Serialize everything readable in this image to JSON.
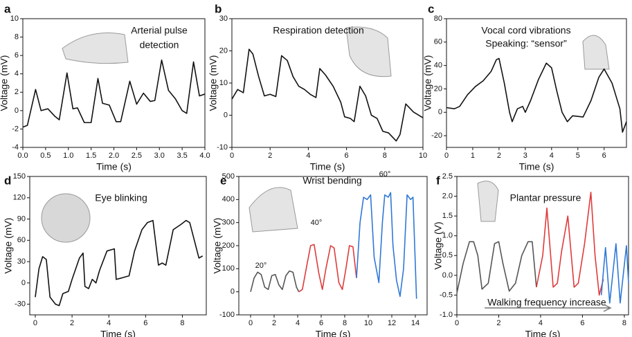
{
  "chart_data": [
    {
      "type": "line",
      "label": "a",
      "annotation": [
        "Arterial pulse",
        "detection"
      ],
      "xlabel": "Time (s)",
      "ylabel": "Voltage (mV)",
      "xlim": [
        0,
        4
      ],
      "xticks": [
        {
          "value": 0,
          "label": "0.0"
        },
        0.5,
        {
          "value": 1,
          "label": "1.0"
        },
        1.5,
        {
          "value": 2,
          "label": "2.0"
        },
        2.5,
        {
          "value": 3,
          "label": "3.0"
        },
        3.5,
        {
          "value": 4,
          "label": "4.0"
        }
      ],
      "ylim": [
        -4,
        10
      ],
      "yticks": [
        -4,
        -2,
        0,
        2,
        4,
        6,
        8,
        10
      ],
      "color": "#111111",
      "x": [
        0,
        0.1,
        0.28,
        0.4,
        0.55,
        0.7,
        0.8,
        0.97,
        1.1,
        1.2,
        1.35,
        1.5,
        1.65,
        1.75,
        1.9,
        2.05,
        2.15,
        2.35,
        2.5,
        2.65,
        2.8,
        2.9,
        3.05,
        3.2,
        3.35,
        3.5,
        3.6,
        3.75,
        3.88,
        4.0
      ],
      "values": [
        -1.8,
        -1.6,
        2.3,
        0,
        0.2,
        -0.6,
        -1,
        4.1,
        0.2,
        0.3,
        -1.3,
        -1.3,
        3.5,
        0.8,
        0.6,
        -1.2,
        -1.2,
        3.2,
        0.7,
        1.9,
        1,
        1.1,
        5.5,
        2.2,
        1.3,
        0,
        -0.3,
        5.3,
        1.6,
        1.8
      ]
    },
    {
      "type": "line",
      "label": "b",
      "annotation": [
        "Respiration detection"
      ],
      "xlabel": "Time (s)",
      "ylabel": "Voltage (mV)",
      "xlim": [
        0,
        10
      ],
      "xticks": [
        0,
        2,
        4,
        6,
        8,
        10
      ],
      "ylim": [
        -10,
        30
      ],
      "yticks": [
        -10,
        0,
        10,
        20,
        30
      ],
      "color": "#111111",
      "x": [
        0,
        0.3,
        0.6,
        0.9,
        1.1,
        1.4,
        1.7,
        2,
        2.3,
        2.6,
        2.9,
        3.2,
        3.5,
        3.8,
        4.1,
        4.4,
        4.6,
        4.9,
        5.3,
        5.7,
        5.9,
        6.2,
        6.4,
        6.7,
        7,
        7.3,
        7.6,
        7.9,
        8.2,
        8.6,
        8.8,
        9.1,
        9.5,
        10
      ],
      "values": [
        5,
        8,
        7,
        20.5,
        19,
        12,
        6,
        6.5,
        5.8,
        18.5,
        17,
        12,
        9,
        8,
        6.5,
        5.5,
        14.5,
        12.5,
        9,
        4,
        -0.5,
        -1,
        -2,
        9,
        6,
        0,
        -1,
        -5,
        -5.5,
        -8,
        -6,
        3.5,
        1,
        -0.8
      ]
    },
    {
      "type": "line",
      "label": "c",
      "annotation": [
        "Vocal cord vibrations",
        "Speaking: “sensor”"
      ],
      "xlabel": "Time (s)",
      "ylabel": "Voltage (mV)",
      "xlim": [
        0,
        6.85
      ],
      "xticks": [
        0,
        1,
        2,
        3,
        4,
        5,
        6
      ],
      "ylim": [
        -30,
        80
      ],
      "yticks": [
        -20,
        0,
        20,
        40,
        60,
        80
      ],
      "color": "#111111",
      "x": [
        0,
        0.3,
        0.5,
        0.8,
        1.1,
        1.4,
        1.7,
        1.9,
        2,
        2.2,
        2.4,
        2.5,
        2.7,
        2.9,
        3.0,
        3.2,
        3.5,
        3.8,
        4,
        4.2,
        4.4,
        4.6,
        4.8,
        5.2,
        5.5,
        5.8,
        6.0,
        6.3,
        6.6,
        6.7,
        6.85
      ],
      "values": [
        4,
        3,
        5,
        15,
        22,
        27,
        35,
        45,
        46,
        25,
        0,
        -8,
        3,
        5,
        0,
        10,
        28,
        42,
        38,
        18,
        0,
        -8,
        -3,
        -4,
        10,
        30,
        37,
        25,
        3,
        -17,
        -8
      ]
    },
    {
      "type": "line",
      "label": "d",
      "annotation": [
        "Eye blinking"
      ],
      "xlabel": "Time (s)",
      "ylabel": "Voltage (mV)",
      "xlim": [
        -0.3,
        9.3
      ],
      "xticks": [
        0,
        2,
        4,
        6,
        8
      ],
      "ylim": [
        -45,
        150
      ],
      "yticks": [
        -30,
        0,
        30,
        60,
        90,
        120,
        150
      ],
      "color": "#111111",
      "x": [
        0,
        0.2,
        0.4,
        0.6,
        0.8,
        1.1,
        1.3,
        1.5,
        1.8,
        2,
        2.4,
        2.6,
        2.7,
        2.9,
        3.1,
        3.3,
        3.5,
        3.9,
        4.3,
        4.4,
        4.7,
        5.1,
        5.4,
        5.8,
        6.1,
        6.4,
        6.7,
        6.9,
        7.1,
        7.5,
        7.9,
        8.2,
        8.4,
        8.9,
        9.1
      ],
      "values": [
        -20,
        20,
        37,
        33,
        -20,
        -30,
        -32,
        -15,
        -12,
        5,
        35,
        42,
        -5,
        -8,
        5,
        0,
        18,
        45,
        48,
        5,
        7,
        10,
        45,
        75,
        85,
        88,
        25,
        28,
        25,
        75,
        82,
        88,
        85,
        35,
        38
      ]
    },
    {
      "type": "line",
      "label": "e",
      "annotation": [
        "Wrist bending"
      ],
      "xlabel": "Time (s)",
      "ylabel": "Voltage (mV)",
      "xlim": [
        -1,
        15
      ],
      "xticks": [
        0,
        2,
        4,
        6,
        8,
        10,
        12,
        14
      ],
      "ylim": [
        -100,
        500
      ],
      "yticks": [
        -100,
        0,
        100,
        200,
        300,
        400,
        500
      ],
      "series": [
        {
          "name": "20°",
          "color": "#555555",
          "x": [
            0,
            0.3,
            0.6,
            0.9,
            1.2,
            1.5,
            1.8,
            2.1,
            2.4,
            2.7,
            3.0,
            3.3,
            3.6,
            3.9,
            4.1
          ],
          "values": [
            0,
            60,
            85,
            75,
            20,
            10,
            70,
            75,
            30,
            10,
            70,
            90,
            85,
            20,
            0
          ]
        },
        {
          "name": "40°",
          "color": "#e03a3a",
          "x": [
            4.1,
            4.4,
            4.8,
            5.1,
            5.4,
            5.8,
            6.1,
            6.4,
            6.8,
            7.1,
            7.5,
            7.8,
            8.1,
            8.4,
            8.7,
            9
          ],
          "values": [
            0,
            10,
            120,
            200,
            205,
            80,
            10,
            100,
            200,
            190,
            40,
            10,
            100,
            200,
            195,
            60
          ]
        },
        {
          "name": "60°",
          "color": "#2f78d6",
          "x": [
            9,
            9.3,
            9.6,
            9.9,
            10.2,
            10.5,
            10.9,
            11.2,
            11.4,
            11.7,
            11.9,
            12.1,
            12.4,
            12.7,
            13,
            13.3,
            13.6,
            13.8,
            14.1
          ],
          "values": [
            60,
            300,
            410,
            400,
            420,
            150,
            40,
            300,
            420,
            410,
            430,
            200,
            50,
            -20,
            100,
            420,
            400,
            410,
            -30
          ]
        }
      ]
    },
    {
      "type": "line",
      "label": "f",
      "annotation": [
        "Plantar pressure",
        "Walking frequency increase"
      ],
      "xlabel": "Time (s)",
      "ylabel": "Voltage (V)",
      "xlim": [
        0,
        8.2
      ],
      "xticks": [
        0,
        2,
        4,
        6,
        8
      ],
      "ylim": [
        -1,
        2.5
      ],
      "yticks": [
        {
          "value": -1,
          "label": "-1.0"
        },
        -0.5,
        {
          "value": 0,
          "label": "0.0"
        },
        0.5,
        {
          "value": 1,
          "label": "1.0"
        },
        1.5,
        {
          "value": 2,
          "label": "2.0"
        },
        2.5
      ],
      "series": [
        {
          "color": "#555555",
          "x": [
            0,
            0.3,
            0.6,
            0.8,
            1.0,
            1.2,
            1.5,
            1.8,
            2.0,
            2.2,
            2.5,
            2.8,
            3.1,
            3.4,
            3.6,
            3.8
          ],
          "values": [
            -0.45,
            0.3,
            0.85,
            0.85,
            0.5,
            -0.35,
            -0.2,
            0.8,
            0.85,
            0.3,
            -0.4,
            -0.2,
            0.5,
            0.85,
            0.85,
            -0.3
          ]
        },
        {
          "color": "#e03a3a",
          "x": [
            3.8,
            4.1,
            4.3,
            4.6,
            4.8,
            5.0,
            5.3,
            5.6,
            5.8,
            6.1,
            6.4,
            6.6,
            6.8,
            7.0
          ],
          "values": [
            -0.3,
            0.5,
            1.7,
            -0.3,
            -0.2,
            0.6,
            1.5,
            -0.3,
            -0.2,
            0.8,
            2.1,
            0.5,
            -0.5,
            -0.1
          ]
        },
        {
          "color": "#2f78d6",
          "x": [
            6.9,
            7.1,
            7.3,
            7.6,
            7.8,
            8.1,
            8.2
          ],
          "values": [
            -0.5,
            0.7,
            -0.7,
            0.8,
            -0.7,
            0.75,
            -0.2
          ]
        }
      ]
    }
  ]
}
